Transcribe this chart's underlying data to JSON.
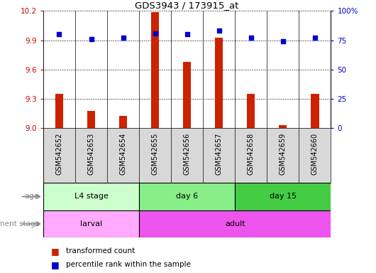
{
  "title": "GDS3943 / 173915_at",
  "samples": [
    "GSM542652",
    "GSM542653",
    "GSM542654",
    "GSM542655",
    "GSM542656",
    "GSM542657",
    "GSM542658",
    "GSM542659",
    "GSM542660"
  ],
  "transformed_count": [
    9.35,
    9.18,
    9.13,
    10.19,
    9.68,
    9.93,
    9.35,
    9.03,
    9.35
  ],
  "percentile_rank": [
    80,
    76,
    77,
    81,
    80,
    83,
    77,
    74,
    77
  ],
  "ylim_left": [
    9.0,
    10.2
  ],
  "ylim_right": [
    0,
    100
  ],
  "yticks_left": [
    9.0,
    9.3,
    9.6,
    9.9,
    10.2
  ],
  "yticks_right": [
    0,
    25,
    50,
    75,
    100
  ],
  "bar_color": "#cc2200",
  "dot_color": "#0000cc",
  "bar_bottom": 9.0,
  "age_groups": [
    {
      "label": "L4 stage",
      "start": 0,
      "end": 3,
      "color": "#ccffcc"
    },
    {
      "label": "day 6",
      "start": 3,
      "end": 6,
      "color": "#88ee88"
    },
    {
      "label": "day 15",
      "start": 6,
      "end": 9,
      "color": "#44cc44"
    }
  ],
  "dev_groups": [
    {
      "label": "larval",
      "start": 0,
      "end": 3,
      "color": "#ffaaff"
    },
    {
      "label": "adult",
      "start": 3,
      "end": 9,
      "color": "#ee55ee"
    }
  ],
  "age_label": "age",
  "dev_label": "development stage",
  "legend_bar_label": "transformed count",
  "legend_dot_label": "percentile rank within the sample",
  "tick_label_color_left": "#cc0000",
  "tick_label_color_right": "#0000cc",
  "background_plot": "#ffffff",
  "background_xlabels": "#d8d8d8",
  "background_fig": "#ffffff"
}
